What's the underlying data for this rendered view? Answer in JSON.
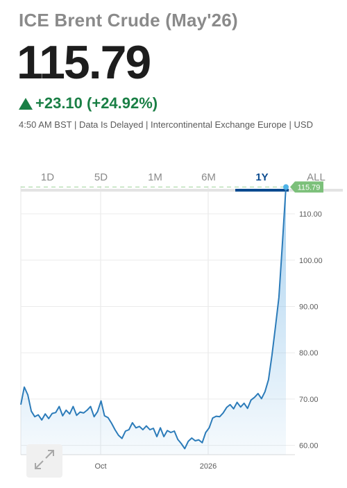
{
  "header": {
    "title": "ICE Brent Crude (May'26)",
    "last_price": "115.79",
    "change": "+23.10 (+24.92%)",
    "meta": "4:50 AM BST | Data Is Delayed | Intercontinental Exchange Europe | USD"
  },
  "range_tabs": [
    "1D",
    "5D",
    "1M",
    "6M",
    "1Y",
    "ALL"
  ],
  "selected_tab": "1Y",
  "colors": {
    "accent": "#0a4a8f",
    "line": "#2b7bb9",
    "positive": "#1a7f45",
    "price_tag": "#7cc07a"
  },
  "icons": {
    "change_direction": "triangle-up-icon",
    "expand": "expand-arrows-icon"
  },
  "chart_data": {
    "type": "area",
    "period": "1Y",
    "x_labels": [
      "Oct",
      "2026"
    ],
    "y_ticks": [
      "110.00",
      "100.00",
      "90.00",
      "80.00",
      "70.00",
      "60.00"
    ],
    "ylim": [
      58,
      117.5
    ],
    "last_value_label": "115.79",
    "series": [
      {
        "values": [
          68.8,
          72.6,
          70.9,
          67.4,
          66.2,
          66.6,
          65.5,
          66.8,
          65.8,
          66.9,
          67.1,
          68.4,
          66.4,
          67.6,
          66.8,
          68.4,
          66.5,
          67.2,
          67.0,
          67.6,
          68.4,
          66.2,
          67.3,
          69.6,
          66.4,
          66.0,
          64.8,
          63.4,
          62.2,
          61.5,
          63.1,
          63.4,
          64.9,
          63.8,
          64.1,
          63.4,
          64.2,
          63.4,
          63.7,
          61.9,
          63.8,
          61.9,
          63.2,
          62.8,
          63.1,
          61.3,
          60.4,
          59.3,
          60.9,
          61.6,
          61.0,
          61.2,
          60.6,
          62.8,
          63.8,
          65.9,
          66.3,
          66.2,
          67.0,
          68.2,
          68.8,
          67.9,
          69.3,
          68.3,
          69.1,
          68.0,
          69.8,
          70.4,
          71.2,
          70.1,
          71.6,
          74.2,
          79.5,
          85.6,
          92.0,
          103.8,
          115.79
        ]
      }
    ]
  }
}
